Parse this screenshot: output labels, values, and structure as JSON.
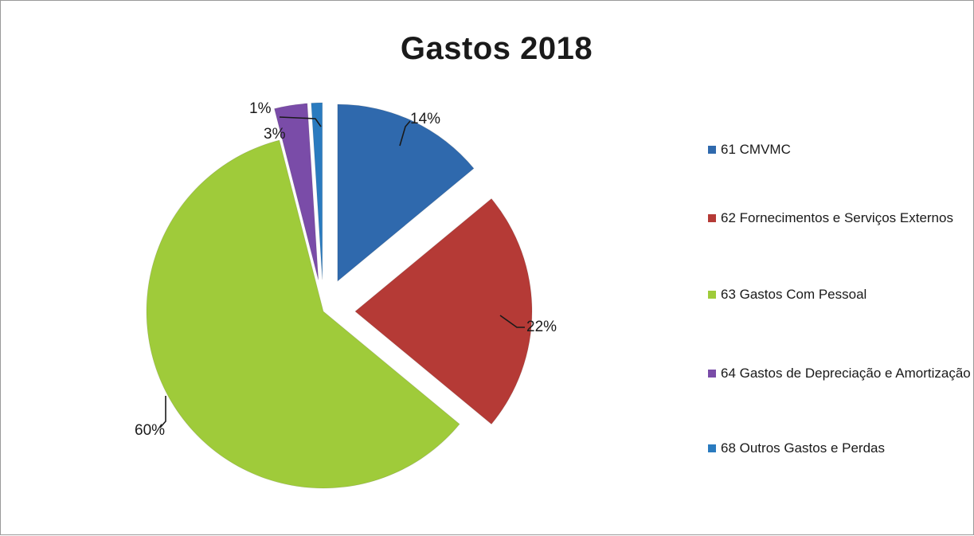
{
  "chart_data": {
    "type": "pie",
    "title": "Gastos 2018",
    "legend_position": "right",
    "series": [
      {
        "name": "61 CMVMC",
        "value": 14,
        "label": "14%",
        "color": "#2f69ad"
      },
      {
        "name": "62 Fornecimentos e Serviços Externos",
        "value": 22,
        "label": "22%",
        "color": "#b53a36"
      },
      {
        "name": "63 Gastos Com Pessoal",
        "value": 60,
        "label": "60%",
        "color": "#9fcb3a"
      },
      {
        "name": "64 Gastos de Depreciação e Amortização",
        "value": 3,
        "label": "3%",
        "color": "#7a4ca8"
      },
      {
        "name": "68 Outros Gastos e Perdas",
        "value": 1,
        "label": "1%",
        "color": "#2a7bbf"
      }
    ]
  }
}
